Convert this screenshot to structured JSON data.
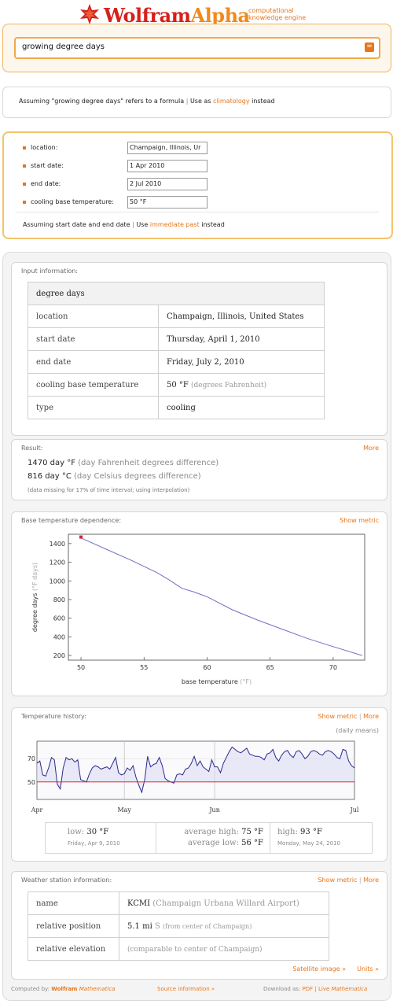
{
  "header": {
    "logo_wolfram": "Wolfram",
    "logo_alpha": "Alpha",
    "tagline_1": "computational",
    "tagline_2": "knowledge engine"
  },
  "search": {
    "query": "growing degree days",
    "button_icon": "equals-icon"
  },
  "assumption": {
    "prefix": "Assuming \"growing degree days\" refers to a formula",
    "use_as": "Use as",
    "alt_link": "climatology",
    "suffix": "instead"
  },
  "params": {
    "rows": [
      {
        "label": "location:",
        "value": "Champaign, Illinois, Ur"
      },
      {
        "label": "start date:",
        "value": "1 Apr 2010"
      },
      {
        "label": "end date:",
        "value": "2 Jul 2010"
      },
      {
        "label": "cooling base temperature:",
        "value": "50 °F"
      }
    ],
    "assume_prefix": "Assuming  start date and end date",
    "use": "Use",
    "alt_link": "immediate past",
    "suffix": "instead"
  },
  "input_info": {
    "title": "Input information:",
    "header": "degree days",
    "rows": [
      {
        "label": "location",
        "value": "Champaign, Illinois, United States",
        "unit": ""
      },
      {
        "label": "start date",
        "value": "Thursday, April 1, 2010",
        "unit": ""
      },
      {
        "label": "end date",
        "value": "Friday, July 2, 2010",
        "unit": ""
      },
      {
        "label": "cooling base temperature",
        "value": "50 °F",
        "unit": "(degrees Fahrenheit)"
      },
      {
        "label": "type",
        "value": "cooling",
        "unit": ""
      }
    ]
  },
  "result": {
    "title": "Result:",
    "more": "More",
    "line1_value": "1470 day °F",
    "line1_unit": "(day Fahrenheit degrees difference)",
    "line2_value": "816 day °C",
    "line2_unit": "(day Celsius degrees difference)",
    "note": "(data missing for 17% of time interval; using interpolation)"
  },
  "base_temp": {
    "title": "Base temperature dependence:",
    "link": "Show metric",
    "ylabel": "degree days",
    "ylabel_unit": "(°F days)",
    "xlabel": "base temperature",
    "xlabel_unit": "(°F)",
    "line_color": "#6f6fc8",
    "marker_color": "#d8202a"
  },
  "chart_data": [
    {
      "type": "line",
      "title": "",
      "xlabel": "base temperature (°F)",
      "ylabel": "degree days (°F days)",
      "xlim": [
        49,
        72.5
      ],
      "ylim": [
        150,
        1500
      ],
      "x_ticks": [
        "50",
        "55",
        "60",
        "65",
        "70"
      ],
      "y_ticks": [
        "200",
        "400",
        "600",
        "800",
        "1000",
        "1200",
        "1400"
      ],
      "grid": false,
      "series": [
        {
          "x": [
            50,
            52,
            54,
            56,
            57,
            58,
            59,
            60,
            62,
            64,
            66,
            68,
            70,
            72.3
          ],
          "values": [
            1460,
            1340,
            1220,
            1090,
            1010,
            920,
            880,
            830,
            690,
            580,
            480,
            380,
            295,
            200
          ]
        }
      ],
      "marker": {
        "x": 50,
        "y": 1470
      }
    },
    {
      "type": "line",
      "title": "",
      "note": "(daily means)",
      "x_ticks": [
        "Apr",
        "May",
        "Jun",
        "Jul"
      ],
      "y_ticks": [
        "50",
        "70"
      ],
      "ylim": [
        35,
        85
      ],
      "base_line": 50,
      "grid": true,
      "series": [
        {
          "name": "daily mean",
          "values": [
            66,
            68,
            56,
            55,
            62,
            71,
            69,
            48,
            44,
            62,
            71,
            69,
            70,
            67,
            69,
            52,
            51,
            50,
            57,
            62,
            64,
            63,
            61,
            62,
            63,
            61,
            66,
            71,
            58,
            56,
            57,
            62,
            60,
            64,
            54,
            47,
            41,
            52,
            72,
            63,
            65,
            66,
            71,
            64,
            53,
            51,
            50,
            49,
            56,
            57,
            56,
            61,
            62,
            66,
            72,
            64,
            68,
            63,
            61,
            59,
            69,
            63,
            63,
            58,
            66,
            71,
            76,
            80,
            78,
            76,
            75,
            77,
            79,
            74,
            73,
            72,
            72,
            71,
            69,
            74,
            75,
            78,
            71,
            68,
            73,
            76,
            77,
            73,
            71,
            76,
            77,
            74,
            70,
            72,
            76,
            77,
            76,
            74,
            73,
            76,
            77,
            76,
            74,
            71,
            70,
            78,
            77,
            68,
            64,
            62
          ]
        }
      ]
    }
  ],
  "temp_history": {
    "title": "Temperature history:",
    "link_metric": "Show metric",
    "link_more": "More",
    "note": "(daily means)",
    "months": [
      "Apr",
      "May",
      "Jun",
      "Jul"
    ],
    "low_label": "low:",
    "low_value": "30 °F",
    "low_date": "Friday, Apr 9, 2010",
    "avg_high_label": "average high:",
    "avg_high_value": "75 °F",
    "avg_low_label": "average low:",
    "avg_low_value": "56 °F",
    "high_label": "high:",
    "high_value": "93 °F",
    "high_date": "Monday, May 24, 2010"
  },
  "station": {
    "title": "Weather station information:",
    "link_metric": "Show metric",
    "link_more": "More",
    "rows": [
      {
        "label": "name",
        "value": "KCMI",
        "extra": "(Champaign Urbana Willard Airport)"
      },
      {
        "label": "relative position",
        "value": "5.1 mi",
        "extra_dir": "S",
        "extra": "(from center of Champaign)"
      },
      {
        "label": "relative elevation",
        "value": "",
        "extra": "(comparable to center of Champaign)"
      }
    ],
    "satellite": "Satellite image »",
    "units": "Units »"
  },
  "footer": {
    "computed_by": "Computed by:",
    "wolfram": "Wolfram",
    "mathematica": "Mathematica",
    "source": "Source information »",
    "download": "Download as:",
    "pdf": "PDF",
    "live": "Live",
    "live_math": "Mathematica"
  }
}
